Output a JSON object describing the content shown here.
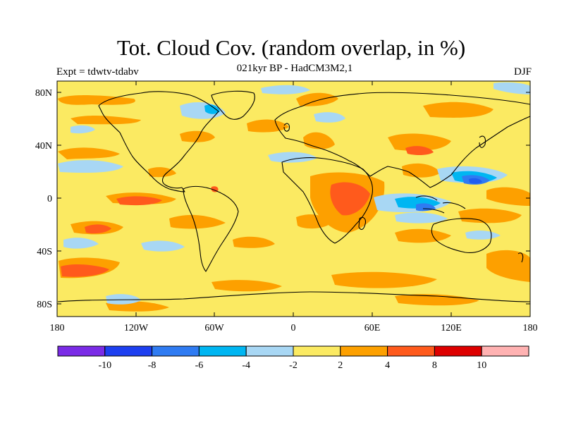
{
  "title": "Tot. Cloud Cov. (random overlap, in %)",
  "subtitle": "021kyr BP - HadCM3M2,1",
  "expt_label": "Expt = tdwtv-tdabv",
  "season": "DJF",
  "map": {
    "background_color": "#fbea62",
    "lat_ticks": [
      "80N",
      "40N",
      "0",
      "40S",
      "80S"
    ],
    "lon_ticks": [
      "180",
      "120W",
      "60W",
      "0",
      "60E",
      "120E",
      "180"
    ],
    "anomaly_regions": [
      {
        "label": "central African maximum",
        "color": "#ff5a1c"
      },
      {
        "label": "equatorial Indian Ocean minimum",
        "color": "#4aa8ff"
      },
      {
        "label": "western Pacific minimum",
        "color": "#1f5ef0"
      },
      {
        "label": "eastern tropical Pacific maximum",
        "color": "#ff5a1c"
      }
    ]
  },
  "colorbar": {
    "colors": [
      "#7a2be6",
      "#1d3ff0",
      "#2f7bf2",
      "#00b6f2",
      "#a8d7f4",
      "#fbea62",
      "#fda000",
      "#ff5a1c",
      "#dd0000",
      "#ffb2b2"
    ],
    "labels": [
      "-10",
      "-8",
      "-6",
      "-4",
      "-2",
      "2",
      "4",
      "8",
      "10"
    ]
  }
}
